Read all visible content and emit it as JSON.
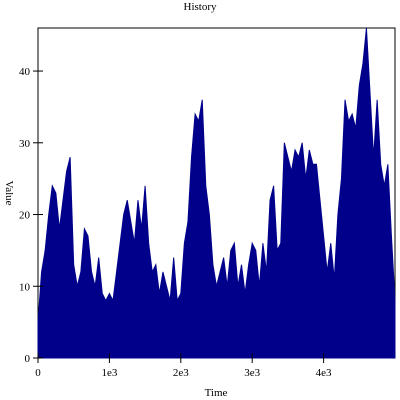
{
  "chart_data": {
    "type": "area",
    "title": "History",
    "x_label": "Time",
    "y_label": "Value",
    "color": "#00008b",
    "xlim": [
      0,
      5000
    ],
    "ylim": [
      0,
      46
    ],
    "xticks": [
      0,
      {
        "value": 1000,
        "label": "1e3"
      },
      {
        "value": 2000,
        "label": "2e3"
      },
      {
        "value": 3000,
        "label": "3e3"
      },
      {
        "value": 4000,
        "label": "4e3"
      }
    ],
    "yticks": [
      0,
      10,
      20,
      30,
      40
    ],
    "x": [
      0,
      50,
      100,
      150,
      200,
      250,
      300,
      350,
      400,
      450,
      500,
      550,
      600,
      650,
      700,
      750,
      800,
      850,
      900,
      950,
      1000,
      1050,
      1100,
      1150,
      1200,
      1250,
      1300,
      1350,
      1400,
      1450,
      1500,
      1550,
      1600,
      1650,
      1700,
      1750,
      1800,
      1850,
      1900,
      1950,
      2000,
      2050,
      2100,
      2150,
      2200,
      2250,
      2300,
      2350,
      2400,
      2450,
      2500,
      2550,
      2600,
      2650,
      2700,
      2750,
      2800,
      2850,
      2900,
      2950,
      3000,
      3050,
      3100,
      3150,
      3200,
      3250,
      3300,
      3350,
      3400,
      3450,
      3500,
      3550,
      3600,
      3650,
      3700,
      3750,
      3800,
      3850,
      3900,
      3950,
      4000,
      4050,
      4100,
      4150,
      4200,
      4250,
      4300,
      4350,
      4400,
      4450,
      4500,
      4550,
      4600,
      4650,
      4700,
      4750,
      4800,
      4850,
      4900,
      4950,
      5000
    ],
    "values": [
      5,
      12,
      15,
      20,
      24,
      23,
      18,
      22,
      26,
      28,
      13,
      10,
      12,
      18,
      17,
      12,
      10,
      14,
      9,
      8,
      9,
      8,
      12,
      16,
      20,
      22,
      19,
      16,
      22,
      18,
      24,
      16,
      12,
      13,
      9,
      12,
      10,
      8,
      14,
      8,
      9,
      16,
      19,
      28,
      34,
      33,
      36,
      24,
      20,
      13,
      10,
      12,
      14,
      10,
      15,
      16,
      10,
      13,
      9,
      13,
      16,
      15,
      10,
      16,
      12,
      22,
      24,
      15,
      16,
      30,
      28,
      26,
      29,
      28,
      30,
      25,
      29,
      27,
      27,
      22,
      17,
      12,
      16,
      11,
      20,
      25,
      36,
      33,
      34,
      32,
      38,
      41,
      46,
      37,
      28,
      36,
      27,
      24,
      27,
      17,
      8
    ]
  }
}
